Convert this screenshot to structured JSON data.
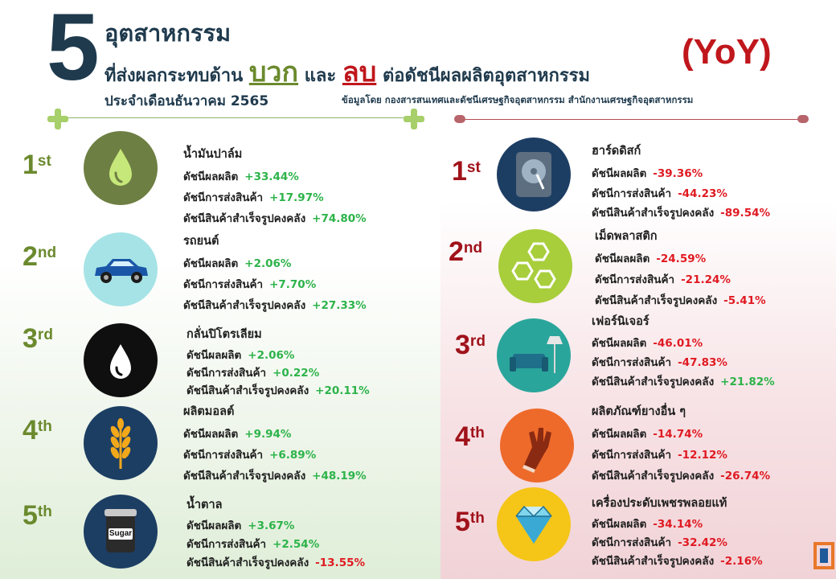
{
  "header": {
    "number": "5",
    "line1": "อุตสาหกรรม",
    "line2_pre": "ที่ส่งผลกระทบด้าน ",
    "positive_word": "บวก",
    "line2_mid": " และ ",
    "negative_word": "ลบ",
    "line2_post": " ต่อดัชนีผลผลิตอุตสาหกรรม",
    "line3": "ประจำเดือนธันวาคม 2565",
    "yoy": "(YoY)",
    "source": "ข้อมูลโดย กองสารสนเทศและดัชนีเศรษฐกิจอุตสาหกรรม สำนักงานเศรษฐกิจอุตสาหกรรม"
  },
  "labels": {
    "production": "ดัชนีผลผลิต",
    "shipment": "ดัชนีการส่งสินค้า",
    "inventory": "ดัชนีสินค้าสำเร็จรูปคงคลัง"
  },
  "colors": {
    "positive": "#2db34a",
    "negative": "#e01a22",
    "rank_positive": "#6b8a2e",
    "rank_negative": "#a0121a"
  },
  "positive": [
    {
      "rank": "1",
      "suffix": "st",
      "name": "น้ำมันปาล์ม",
      "icon": "oil-drop-icon",
      "production": "+33.44%",
      "shipment": "+17.97%",
      "inventory": "+74.80%"
    },
    {
      "rank": "2",
      "suffix": "nd",
      "name": "รถยนต์",
      "icon": "car-icon",
      "production": "+2.06%",
      "shipment": "+7.70%",
      "inventory": "+27.33%"
    },
    {
      "rank": "3",
      "suffix": "rd",
      "name": "กลั่นปิโตรเลียม",
      "icon": "petroleum-drop-icon",
      "production": "+2.06%",
      "shipment": "+0.22%",
      "inventory": "+20.11%"
    },
    {
      "rank": "4",
      "suffix": "th",
      "name": "ผลิตมอลต์",
      "icon": "wheat-icon",
      "production": "+9.94%",
      "shipment": "+6.89%",
      "inventory": "+48.19%"
    },
    {
      "rank": "5",
      "suffix": "th",
      "name": "น้ำตาล",
      "icon": "sugar-jar-icon",
      "icon_text": "Sugar",
      "production": "+3.67%",
      "shipment": "+2.54%",
      "inventory": "-13.55%"
    }
  ],
  "negative": [
    {
      "rank": "1",
      "suffix": "st",
      "name": "ฮาร์ดดิสก์",
      "icon": "hard-disk-icon",
      "production": "-39.36%",
      "shipment": "-44.23%",
      "inventory": "-89.54%"
    },
    {
      "rank": "2",
      "suffix": "nd",
      "name": "เม็ดพลาสติก",
      "icon": "plastic-pellets-icon",
      "production": "-24.59%",
      "shipment": "-21.24%",
      "inventory": "-5.41%"
    },
    {
      "rank": "3",
      "suffix": "rd",
      "name": "เฟอร์นิเจอร์",
      "icon": "sofa-lamp-icon",
      "production": "-46.01%",
      "shipment": "-47.83%",
      "inventory": "+21.82%"
    },
    {
      "rank": "4",
      "suffix": "th",
      "name": "ผลิตภัณฑ์ยางอื่น ๆ",
      "icon": "rubber-glove-icon",
      "production": "-14.74%",
      "shipment": "-12.12%",
      "inventory": "-26.74%"
    },
    {
      "rank": "5",
      "suffix": "th",
      "name": "เครื่องประดับเพชรพลอยแท้",
      "icon": "diamond-icon",
      "production": "-34.14%",
      "shipment": "-32.42%",
      "inventory": "-2.16%"
    }
  ]
}
